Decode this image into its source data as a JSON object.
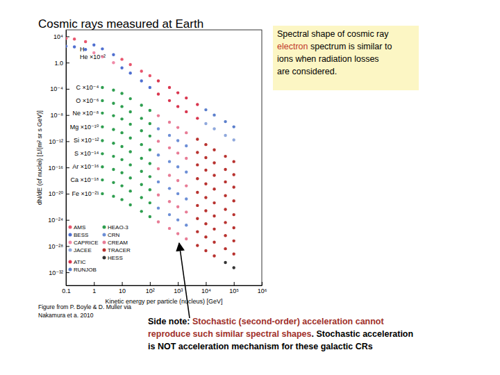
{
  "chart_data": {
    "type": "scatter",
    "title": "Cosmic rays measured at Earth",
    "x_label": "Kinetic energy per particle (nucleus) [GeV]",
    "y_label": "dN/dE (of nuclei) [1/(m² sr s GeV)]",
    "log": true,
    "xlim": [
      0.1,
      1000000
    ],
    "ylim": [
      1e-34,
      100000
    ],
    "xticks": [
      0.1,
      1,
      10,
      {
        "value": 100,
        "label": "10²"
      },
      {
        "value": 1000,
        "label": "10³"
      },
      {
        "value": 10000,
        "label": "10⁴"
      },
      {
        "value": 100000,
        "label": "10⁵"
      },
      {
        "value": 1000000,
        "label": "10⁶"
      }
    ],
    "yticks": [
      {
        "value": 10000,
        "label": "10⁴"
      },
      {
        "value": 1,
        "label": "1.0"
      },
      {
        "value": 0.0001,
        "label": "10⁻⁴"
      },
      {
        "value": 1e-08,
        "label": "10⁻⁸"
      },
      {
        "value": 1e-12,
        "label": "10⁻¹²"
      },
      {
        "value": 1e-16,
        "label": "10⁻¹⁶"
      },
      {
        "value": 1e-20,
        "label": "10⁻²⁰"
      },
      {
        "value": 1e-24,
        "label": "10⁻²⁴"
      },
      {
        "value": 1e-28,
        "label": "10⁻²⁸"
      },
      {
        "value": 1e-32,
        "label": "10⁻³²"
      }
    ],
    "series": [
      {
        "name": "H",
        "x": [
          0.1,
          0.2,
          0.5,
          1,
          2,
          5,
          10,
          20,
          50,
          100,
          200,
          500,
          1000,
          2000,
          5000,
          10000,
          20000,
          50000,
          100000
        ],
        "values": [
          5000,
          4000,
          1600,
          500,
          126,
          16,
          3.2,
          0.5,
          0.05,
          0.01,
          0.0016,
          0.00016,
          2.5e-05,
          4e-06,
          4e-07,
          6.3e-08,
          1e-08,
          1e-09,
          1.6e-10
        ],
        "colors": [
          "#e8556d",
          "#e8556d",
          "#e8556d",
          "#4f6fd0",
          "#4f6fd0",
          "#4f6fd0",
          "#e8556d",
          "#e8556d",
          "#e8556d",
          "#e8556d",
          "#d9364f",
          "#d9364f",
          "#d9364f",
          "#d9364f",
          "#d9364f",
          "#5b7fcc",
          "#5b7fcc",
          "#5b7fcc",
          "#5b7fcc"
        ]
      },
      {
        "name": "He ×10⁻²",
        "x": [
          0.1,
          0.2,
          0.5,
          1,
          2,
          5,
          10,
          20,
          50,
          100,
          200,
          500,
          1000,
          2000,
          5000,
          10000,
          20000,
          50000,
          100000
        ],
        "values": [
          316,
          251,
          100,
          32,
          7.9,
          1,
          0.16,
          0.025,
          0.0016,
          0.00016,
          1.6e-05,
          1.6e-06,
          2e-07,
          3.2e-08,
          3.2e-09,
          5e-10,
          7.9e-11,
          7.9e-12,
          1.6e-12
        ],
        "colors": [
          "#4f6fd0",
          "#4f6fd0",
          "#4f6fd0",
          "#f08aa8",
          "#f08aa8",
          "#f08aa8",
          "#4f6fd0",
          "#4f6fd0",
          "#4f6fd0",
          "#4f6fd0",
          "#d9364f",
          "#d9364f",
          "#d9364f",
          "#d9364f",
          "#d9364f",
          "#8fa8dc",
          "#8fa8dc",
          "#8fa8dc",
          "#8fa8dc"
        ]
      },
      {
        "name": "C ×10⁻⁴",
        "x": [
          2,
          5,
          10,
          20,
          50,
          100,
          200,
          500,
          1000,
          2000,
          5000,
          10000,
          20000,
          50000,
          100000
        ],
        "values": [
          0.000158,
          6.31e-05,
          2e-05,
          3.16e-06,
          3.16e-07,
          5.01e-08,
          7.94e-09,
          7.94e-10,
          1.26e-10,
          2e-11,
          2e-12,
          3.16e-13,
          5.01e-14,
          5.01e-15,
          7.94e-16
        ],
        "colors": [
          "#2e9e4f",
          "#2e9e4f",
          "#2e9e4f",
          "#2e9e4f",
          "#2e9e4f",
          "#2e9e4f",
          "#e87c96",
          "#e87c96",
          "#e87c96",
          "#e87c96",
          "#b8322f",
          "#b8322f",
          "#b8322f",
          "#b8322f",
          "#b8322f"
        ]
      },
      {
        "name": "O ×10⁻⁶",
        "x": [
          2,
          5,
          10,
          20,
          50,
          100,
          200,
          500,
          1000,
          2000,
          5000,
          10000,
          20000,
          50000,
          100000
        ],
        "values": [
          1.58e-06,
          6.31e-07,
          2e-07,
          3.16e-08,
          3.16e-09,
          5.01e-10,
          7.94e-11,
          7.94e-12,
          1.26e-12,
          2e-13,
          2e-14,
          3.16e-15,
          5.01e-16,
          5.01e-17,
          7.94e-18
        ],
        "colors": [
          "#2e9e4f",
          "#2e9e4f",
          "#2e9e4f",
          "#2e9e4f",
          "#2e9e4f",
          "#2e9e4f",
          "#6d8fd6",
          "#6d8fd6",
          "#6d8fd6",
          "#6d8fd6",
          "#b8322f",
          "#b8322f",
          "#b8322f",
          "#b8322f",
          "#b8322f"
        ]
      },
      {
        "name": "Ne ×10⁻⁸",
        "x": [
          2,
          5,
          10,
          20,
          50,
          100,
          200,
          500,
          1000,
          2000,
          5000,
          10000,
          20000,
          50000,
          100000
        ],
        "values": [
          2e-08,
          7.94e-09,
          2.51e-09,
          3.98e-10,
          3.98e-11,
          6.31e-12,
          1e-12,
          1e-13,
          1.58e-14,
          2.51e-15,
          2.51e-16,
          3.98e-17,
          6.31e-18,
          6.31e-19,
          1e-19
        ],
        "colors": [
          "#2e9e4f",
          "#2e9e4f",
          "#2e9e4f",
          "#2e9e4f",
          "#2e9e4f",
          "#2e9e4f",
          "#e87c96",
          "#e87c96",
          "#e87c96",
          "#e87c96",
          "#b8322f",
          "#b8322f",
          "#b8322f",
          "#b8322f",
          "#b8322f"
        ]
      },
      {
        "name": "Mg ×10⁻¹⁰",
        "x": [
          2,
          5,
          10,
          20,
          50,
          100,
          200,
          500,
          1000,
          2000,
          5000,
          10000,
          20000,
          50000,
          100000
        ],
        "values": [
          1.58e-10,
          6.31e-11,
          2e-11,
          3.16e-12,
          3.16e-13,
          5.01e-14,
          7.94e-15,
          7.94e-16,
          1.26e-16,
          2e-17,
          2e-18,
          3.16e-19,
          5.01e-20,
          5.01e-21,
          7.94e-22
        ],
        "colors": [
          "#2e9e4f",
          "#2e9e4f",
          "#2e9e4f",
          "#2e9e4f",
          "#2e9e4f",
          "#2e9e4f",
          "#6d8fd6",
          "#6d8fd6",
          "#6d8fd6",
          "#6d8fd6",
          "#b8322f",
          "#b8322f",
          "#b8322f",
          "#b8322f",
          "#b8322f"
        ]
      },
      {
        "name": "Si ×10⁻¹²",
        "x": [
          2,
          5,
          10,
          20,
          50,
          100,
          200,
          500,
          1000,
          2000,
          5000,
          10000,
          20000,
          50000,
          100000
        ],
        "values": [
          1.26e-12,
          5.01e-13,
          1.58e-13,
          2.51e-14,
          2.51e-15,
          3.98e-16,
          6.31e-17,
          6.31e-18,
          1e-18,
          1.58e-19,
          1.58e-20,
          2.51e-21,
          3.98e-22,
          3.98e-23,
          6.31e-24
        ],
        "colors": [
          "#2e9e4f",
          "#2e9e4f",
          "#2e9e4f",
          "#2e9e4f",
          "#2e9e4f",
          "#2e9e4f",
          "#e87c96",
          "#e87c96",
          "#e87c96",
          "#e87c96",
          "#b8322f",
          "#b8322f",
          "#b8322f",
          "#b8322f",
          "#b8322f"
        ]
      },
      {
        "name": "S ×10⁻¹⁴",
        "x": [
          2,
          5,
          10,
          20,
          50,
          100,
          200,
          500,
          1000,
          2000,
          5000,
          10000,
          20000,
          50000,
          100000
        ],
        "values": [
          1.26e-14,
          5.01e-15,
          1.58e-15,
          2.51e-16,
          2.51e-17,
          3.98e-18,
          6.31e-19,
          6.31e-20,
          1e-20,
          1.58e-21,
          1.58e-22,
          2.51e-23,
          3.98e-24,
          3.98e-25,
          6.31e-26
        ],
        "colors": [
          "#2e9e4f",
          "#2e9e4f",
          "#2e9e4f",
          "#2e9e4f",
          "#2e9e4f",
          "#2e9e4f",
          "#6d8fd6",
          "#6d8fd6",
          "#6d8fd6",
          "#6d8fd6",
          "#b8322f",
          "#b8322f",
          "#b8322f",
          "#b8322f",
          "#b8322f"
        ]
      },
      {
        "name": "Ar ×10⁻¹⁶",
        "x": [
          2,
          5,
          10,
          20,
          50,
          100,
          200,
          500,
          1000,
          2000,
          5000,
          10000,
          20000,
          50000,
          100000
        ],
        "values": [
          1.26e-16,
          5.01e-17,
          1.58e-17,
          2.51e-18,
          2.51e-19,
          3.98e-20,
          6.31e-21,
          6.31e-22,
          1e-22,
          1.58e-23,
          1.58e-24,
          2.51e-25,
          3.98e-26,
          3.98e-27,
          6.31e-28
        ],
        "colors": [
          "#2e9e4f",
          "#2e9e4f",
          "#2e9e4f",
          "#2e9e4f",
          "#2e9e4f",
          "#2e9e4f",
          "#e87c96",
          "#e87c96",
          "#e87c96",
          "#e87c96",
          "#b8322f",
          "#b8322f",
          "#b8322f",
          "#b8322f",
          "#b8322f"
        ]
      },
      {
        "name": "Ca ×10⁻¹⁸",
        "x": [
          2,
          5,
          10,
          20,
          50,
          100,
          200,
          500,
          1000,
          2000,
          5000,
          10000,
          20000,
          50000,
          100000
        ],
        "values": [
          1.26e-18,
          5.01e-19,
          1.58e-19,
          2.51e-20,
          2.51e-21,
          3.98e-22,
          6.31e-23,
          6.31e-24,
          1e-24,
          1.58e-25,
          1.58e-26,
          2.51e-27,
          3.98e-28,
          3.98e-29,
          6.31e-30
        ],
        "colors": [
          "#2e9e4f",
          "#2e9e4f",
          "#2e9e4f",
          "#2e9e4f",
          "#2e9e4f",
          "#2e9e4f",
          "#6d8fd6",
          "#6d8fd6",
          "#6d8fd6",
          "#6d8fd6",
          "#b8322f",
          "#b8322f",
          "#b8322f",
          "#b8322f",
          "#b8322f"
        ]
      },
      {
        "name": "Fe ×10⁻²¹",
        "x": [
          2,
          5,
          10,
          20,
          50,
          100,
          200,
          500,
          1000,
          2000,
          5000,
          10000,
          20000,
          50000,
          100000
        ],
        "values": [
          1e-20,
          3.98e-21,
          1.26e-21,
          2e-22,
          2e-23,
          3.16e-24,
          5.01e-25,
          5.01e-26,
          7.94e-27,
          1.26e-27,
          1.26e-28,
          2e-29,
          3.16e-30,
          3.16e-31,
          5.01e-32
        ],
        "colors": [
          "#2e9e4f",
          "#2e9e4f",
          "#2e9e4f",
          "#2e9e4f",
          "#2e9e4f",
          "#2e9e4f",
          "#e87c96",
          "#e87c96",
          "#e87c96",
          "#e87c96",
          "#b8322f",
          "#b8322f",
          "#b8322f",
          "#333333",
          "#333333"
        ]
      }
    ],
    "legend_entries": [
      {
        "name": "AMS",
        "color": "#e8556d"
      },
      {
        "name": "BESS",
        "color": "#4f6fd0"
      },
      {
        "name": "CAPRICE",
        "color": "#f08aa8"
      },
      {
        "name": "JACEE",
        "color": "#8fa8dc"
      },
      {
        "name": "ATIC",
        "color": "#d9364f"
      },
      {
        "name": "RUNJOB",
        "color": "#5b7fcc"
      },
      {
        "name": "HEAO-3",
        "color": "#2e9e4f"
      },
      {
        "name": "CRN",
        "color": "#6d8fd6"
      },
      {
        "name": "CREAM",
        "color": "#e87c96"
      },
      {
        "name": "TRACER",
        "color": "#b8322f"
      },
      {
        "name": "HESS",
        "color": "#333333"
      }
    ],
    "note_box": [
      [
        {
          "text": "Spectral shape of cosmic ray",
          "color": "#000000"
        }
      ],
      [
        {
          "text": "electron",
          "color": "#c0392b"
        },
        {
          "text": " spectrum is similar to",
          "color": "#000000"
        }
      ],
      [
        {
          "text": "ions when radiation losses",
          "color": "#000000"
        }
      ],
      [
        {
          "text": "are considered.",
          "color": "#000000"
        }
      ]
    ],
    "side_note": [
      [
        {
          "text": "Side note: ",
          "color": "#000000"
        },
        {
          "text": "Stochastic (second-order) acceleration cannot",
          "color": "#a0302a"
        }
      ],
      [
        {
          "text": "reproduce such similar spectral shapes",
          "color": "#a0302a"
        },
        {
          "text": ". Stochastic acceleration",
          "color": "#000000"
        }
      ],
      [
        {
          "text": "is NOT acceleration mechanism for these galactic CRs",
          "color": "#000000"
        }
      ]
    ],
    "credit": [
      "Figure from P. Boyle & D. Muller via",
      "Nakamura et a. 2010"
    ]
  }
}
